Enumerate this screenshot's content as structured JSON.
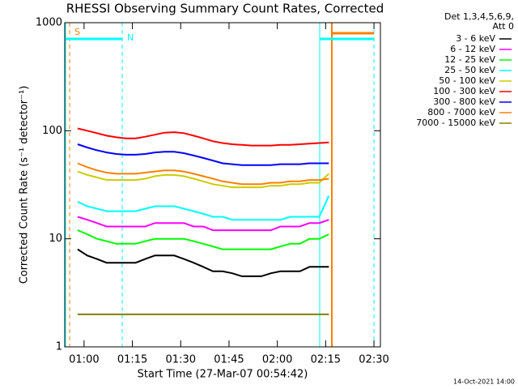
{
  "chart_data": {
    "type": "line",
    "title": "RHESSI Observing Summary Count Rates, Corrected",
    "x_label": "Start Time (27-Mar-07 00:54:42)",
    "y_label": "Corrected Count Rate (s⁻¹ detector⁻¹)",
    "legend_title": [
      "Det 1,3,4,5,6,9,",
      "Att 0"
    ],
    "legend_position": "right",
    "annotations": [
      "S",
      "N"
    ],
    "footer": "14-Oct-2021 14:00",
    "log_y": true,
    "xlim": [
      "00:54",
      "02:32"
    ],
    "xticks": [
      "01:00",
      "01:15",
      "01:30",
      "01:45",
      "02:00",
      "02:15",
      "02:30"
    ],
    "ylim": [
      1,
      1000
    ],
    "yticks": [
      1,
      10,
      100,
      1000
    ],
    "x": [
      "00:58",
      "01:01",
      "01:04",
      "01:07",
      "01:10",
      "01:13",
      "01:16",
      "01:19",
      "01:22",
      "01:25",
      "01:28",
      "01:31",
      "01:34",
      "01:37",
      "01:40",
      "01:43",
      "01:46",
      "01:49",
      "01:52",
      "01:55",
      "01:58",
      "02:01",
      "02:04",
      "02:07",
      "02:10",
      "02:13",
      "02:16"
    ],
    "series": [
      {
        "name": "3 - 6 keV",
        "color": "#000000",
        "values": [
          8,
          7,
          6.5,
          6,
          6,
          6,
          6,
          6.5,
          7,
          7,
          7,
          6.5,
          6,
          5.5,
          5,
          5,
          4.8,
          4.5,
          4.5,
          4.5,
          4.8,
          5,
          5,
          5,
          5.5,
          5.5,
          5.5
        ]
      },
      {
        "name": "6 - 12 keV",
        "color": "#ff00ff",
        "values": [
          16,
          15,
          14,
          13,
          13,
          13,
          13,
          13,
          14,
          14,
          14,
          14,
          13,
          13,
          12,
          12,
          12,
          12,
          12,
          12,
          12,
          13,
          13,
          13,
          14,
          14,
          15
        ]
      },
      {
        "name": "12 - 25 keV",
        "color": "#00ff00",
        "values": [
          12,
          11,
          10,
          9.5,
          9,
          9,
          9,
          9.5,
          10,
          10,
          10,
          10,
          9.5,
          9,
          8.5,
          8,
          8,
          8,
          8,
          8,
          8,
          8.5,
          9,
          9,
          10,
          10,
          11
        ]
      },
      {
        "name": "25 - 50 keV",
        "color": "#00ffff",
        "values": [
          22,
          20,
          19,
          18,
          18,
          18,
          18,
          19,
          20,
          20,
          20,
          19,
          18,
          17,
          16,
          16,
          15,
          15,
          15,
          15,
          15,
          15,
          16,
          16,
          16,
          16,
          25
        ]
      },
      {
        "name": "50 - 100 keV",
        "color": "#cccc00",
        "values": [
          42,
          39,
          37,
          35,
          35,
          35,
          35,
          36,
          38,
          39,
          39,
          38,
          36,
          34,
          32,
          31,
          30,
          30,
          30,
          30,
          31,
          31,
          32,
          32,
          33,
          33,
          40
        ]
      },
      {
        "name": "100 - 300 keV",
        "color": "#ff0000",
        "values": [
          105,
          100,
          95,
          90,
          87,
          85,
          85,
          88,
          92,
          96,
          97,
          95,
          90,
          85,
          80,
          77,
          75,
          74,
          73,
          73,
          73,
          74,
          74,
          75,
          76,
          77,
          78
        ]
      },
      {
        "name": "300 - 800 keV",
        "color": "#0000ff",
        "values": [
          75,
          70,
          66,
          63,
          61,
          60,
          60,
          61,
          63,
          64,
          64,
          62,
          59,
          56,
          53,
          50,
          49,
          48,
          48,
          48,
          48,
          49,
          49,
          49,
          50,
          50,
          50
        ]
      },
      {
        "name": "800 - 7000 keV",
        "color": "#ff8000",
        "values": [
          50,
          46,
          43,
          41,
          40,
          40,
          40,
          41,
          42,
          43,
          43,
          42,
          40,
          38,
          36,
          34,
          33,
          32,
          32,
          32,
          33,
          33,
          34,
          34,
          35,
          35,
          36
        ]
      },
      {
        "name": "7000 - 15000 keV",
        "color": "#808000",
        "values": [
          2,
          2,
          2,
          2,
          2,
          2,
          2,
          2,
          2,
          2,
          2,
          2,
          2,
          2,
          2,
          2,
          2,
          2,
          2,
          2,
          2,
          2,
          2,
          2,
          2,
          2,
          2
        ]
      }
    ]
  }
}
